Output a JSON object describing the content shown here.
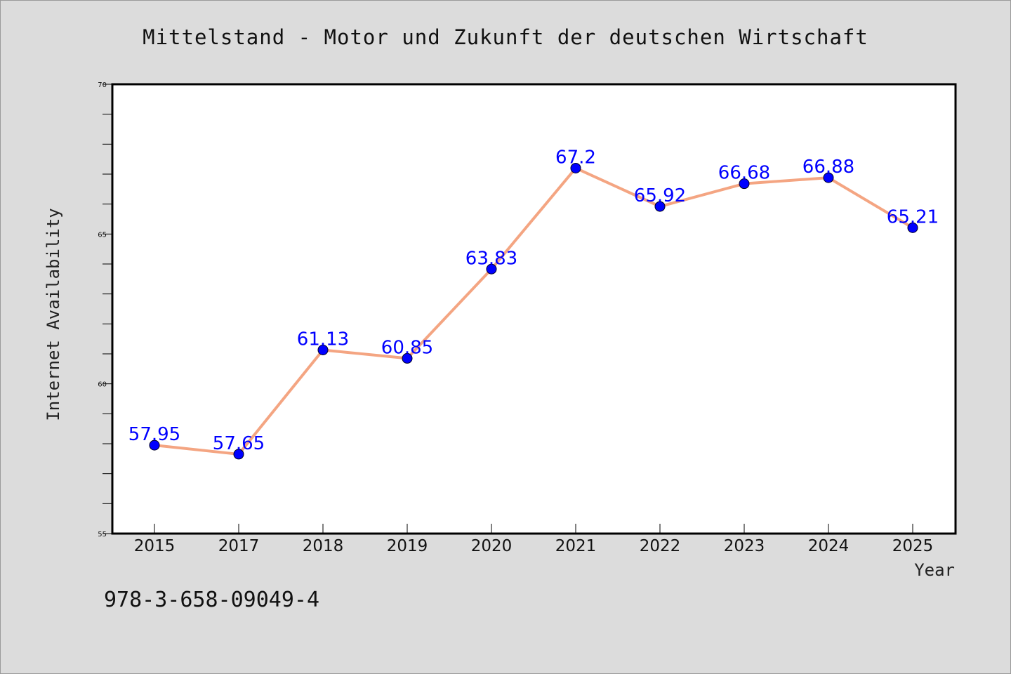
{
  "chart_data": {
    "type": "line",
    "title": "Mittelstand - Motor und Zukunft der deutschen Wirtschaft",
    "xlabel": "Year",
    "ylabel": "Internet Availability",
    "categories": [
      "2015",
      "2017",
      "2018",
      "2019",
      "2020",
      "2021",
      "2022",
      "2023",
      "2024",
      "2025"
    ],
    "series": [
      {
        "values": [
          57.95,
          57.65,
          61.13,
          60.85,
          63.83,
          67.2,
          65.92,
          66.68,
          66.88,
          65.21
        ],
        "labels": [
          "57.95",
          "57.65",
          "61.13",
          "60.85",
          "63.83",
          "67.2",
          "65.92",
          "66.68",
          "66.88",
          "65.21"
        ],
        "line_color": "#f4a582",
        "marker_color": "#0000ff"
      }
    ],
    "ylim": [
      55,
      70
    ],
    "y_ticks": [
      "55",
      "60",
      "65",
      "70"
    ],
    "grid": false,
    "legend": "none"
  },
  "footnote": "978-3-658-09049-4",
  "colors": {
    "background": "#dcdcdc",
    "plot_background": "#ffffff",
    "data_label": "#0000ff"
  }
}
